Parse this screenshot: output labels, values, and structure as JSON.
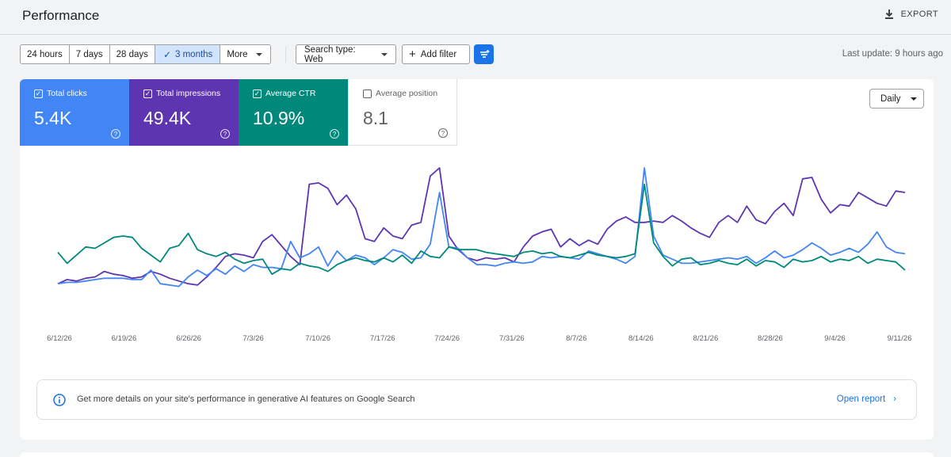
{
  "header": {
    "title": "Performance",
    "export_label": "EXPORT"
  },
  "toolbar": {
    "date_ranges": [
      {
        "label": "24 hours",
        "selected": false
      },
      {
        "label": "7 days",
        "selected": false
      },
      {
        "label": "28 days",
        "selected": false
      },
      {
        "label": "3 months",
        "selected": true
      },
      {
        "label": "More",
        "selected": false
      }
    ],
    "search_type_label": "Search type: Web",
    "add_filter_label": "Add filter",
    "last_update": "Last update: 9 hours ago"
  },
  "metrics": {
    "clicks": {
      "label": "Total clicks",
      "value": "5.4K",
      "checked": true,
      "color": "#4285f4"
    },
    "impressions": {
      "label": "Total impressions",
      "value": "49.4K",
      "checked": true,
      "color": "#5e35b1"
    },
    "ctr": {
      "label": "Average CTR",
      "value": "10.9%",
      "checked": true,
      "color": "#00897b"
    },
    "position": {
      "label": "Average position",
      "value": "8.1",
      "checked": false
    }
  },
  "granularity": "Daily",
  "chart_data": {
    "type": "line",
    "x_labels": [
      "6/12/26",
      "6/19/26",
      "6/26/26",
      "7/3/26",
      "7/10/26",
      "7/17/26",
      "7/24/26",
      "7/31/26",
      "8/7/26",
      "8/14/26",
      "8/21/26",
      "8/28/26",
      "9/4/26",
      "9/11/26"
    ],
    "num_points": 92,
    "grid": false,
    "legend": "none",
    "series": [
      {
        "name": "Total impressions",
        "color": "#5e35b1",
        "normalized_values": [
          0.15,
          0.18,
          0.17,
          0.19,
          0.2,
          0.24,
          0.22,
          0.21,
          0.19,
          0.2,
          0.24,
          0.22,
          0.19,
          0.17,
          0.15,
          0.14,
          0.2,
          0.27,
          0.35,
          0.37,
          0.36,
          0.34,
          0.46,
          0.51,
          0.43,
          0.35,
          0.29,
          0.88,
          0.89,
          0.85,
          0.73,
          0.8,
          0.7,
          0.48,
          0.46,
          0.56,
          0.5,
          0.48,
          0.58,
          0.6,
          0.94,
          1.0,
          0.5,
          0.4,
          0.34,
          0.32,
          0.34,
          0.33,
          0.34,
          0.31,
          0.42,
          0.5,
          0.53,
          0.55,
          0.42,
          0.48,
          0.43,
          0.47,
          0.44,
          0.55,
          0.61,
          0.64,
          0.6,
          0.6,
          0.61,
          0.6,
          0.65,
          0.61,
          0.56,
          0.52,
          0.49,
          0.6,
          0.65,
          0.6,
          0.72,
          0.62,
          0.59,
          0.68,
          0.74,
          0.65,
          0.92,
          0.93,
          0.77,
          0.67,
          0.73,
          0.72,
          0.82,
          0.78,
          0.74,
          0.72,
          0.83,
          0.82
        ]
      },
      {
        "name": "Total clicks",
        "color": "#4285f4",
        "normalized_values": [
          0.15,
          0.16,
          0.16,
          0.17,
          0.18,
          0.19,
          0.19,
          0.19,
          0.18,
          0.18,
          0.25,
          0.15,
          0.14,
          0.13,
          0.2,
          0.25,
          0.21,
          0.26,
          0.22,
          0.28,
          0.24,
          0.29,
          0.27,
          0.27,
          0.26,
          0.46,
          0.34,
          0.37,
          0.42,
          0.28,
          0.39,
          0.32,
          0.36,
          0.34,
          0.29,
          0.34,
          0.4,
          0.38,
          0.33,
          0.34,
          0.44,
          0.82,
          0.42,
          0.41,
          0.34,
          0.29,
          0.29,
          0.28,
          0.3,
          0.31,
          0.3,
          0.31,
          0.35,
          0.34,
          0.35,
          0.34,
          0.33,
          0.39,
          0.37,
          0.35,
          0.33,
          0.3,
          0.35,
          1.0,
          0.5,
          0.36,
          0.33,
          0.3,
          0.3,
          0.31,
          0.32,
          0.33,
          0.34,
          0.33,
          0.35,
          0.3,
          0.34,
          0.39,
          0.34,
          0.36,
          0.4,
          0.45,
          0.41,
          0.36,
          0.38,
          0.41,
          0.38,
          0.44,
          0.53,
          0.42,
          0.38,
          0.37
        ]
      },
      {
        "name": "Average CTR",
        "color": "#00897b",
        "normalized_values": [
          0.38,
          0.3,
          0.36,
          0.42,
          0.41,
          0.45,
          0.49,
          0.5,
          0.49,
          0.41,
          0.36,
          0.31,
          0.41,
          0.43,
          0.52,
          0.4,
          0.37,
          0.35,
          0.38,
          0.33,
          0.3,
          0.32,
          0.33,
          0.22,
          0.26,
          0.25,
          0.3,
          0.28,
          0.27,
          0.24,
          0.29,
          0.32,
          0.34,
          0.32,
          0.31,
          0.34,
          0.31,
          0.36,
          0.3,
          0.39,
          0.35,
          0.34,
          0.42,
          0.4,
          0.4,
          0.4,
          0.38,
          0.37,
          0.36,
          0.35,
          0.38,
          0.39,
          0.37,
          0.38,
          0.35,
          0.34,
          0.36,
          0.38,
          0.36,
          0.35,
          0.34,
          0.35,
          0.37,
          0.88,
          0.45,
          0.35,
          0.28,
          0.33,
          0.34,
          0.29,
          0.3,
          0.32,
          0.3,
          0.29,
          0.33,
          0.28,
          0.32,
          0.31,
          0.27,
          0.33,
          0.31,
          0.32,
          0.35,
          0.31,
          0.33,
          0.32,
          0.35,
          0.3,
          0.33,
          0.32,
          0.31,
          0.25
        ]
      }
    ]
  },
  "banner": {
    "text": "Get more details on your site's performance in generative AI features on Google Search",
    "link_label": "Open report"
  }
}
